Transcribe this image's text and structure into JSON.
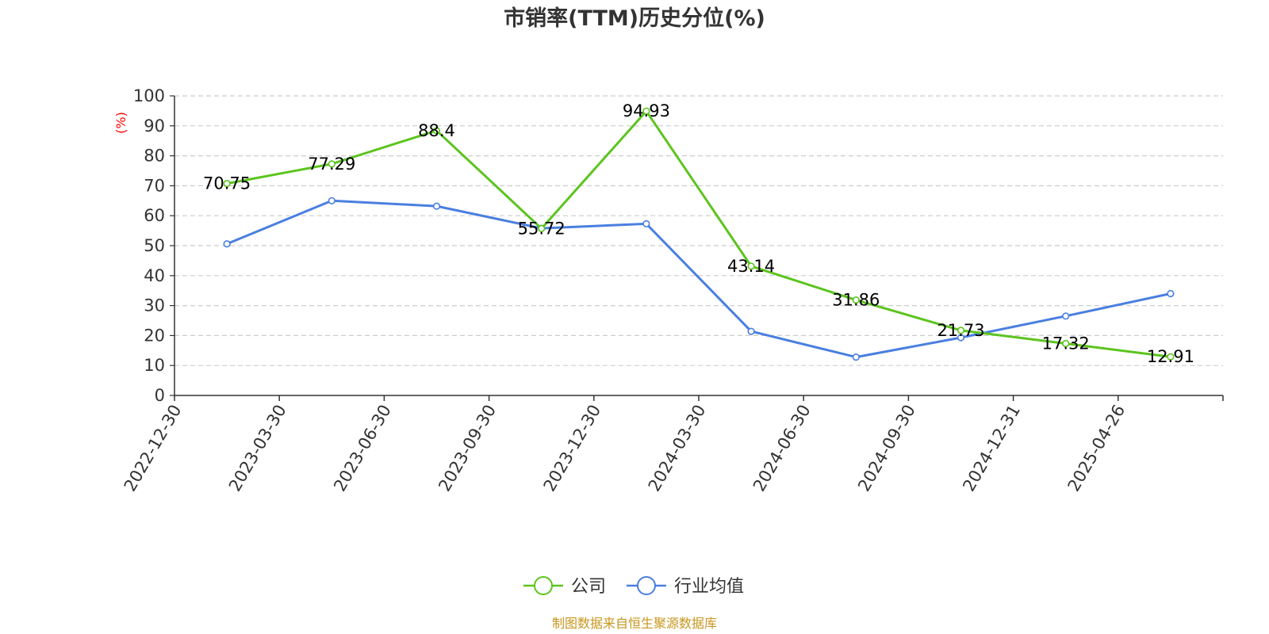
{
  "chart_data": {
    "type": "line",
    "title": "市销率(TTM)历史分位(%)",
    "ylabel": "(%)",
    "xlabel": "",
    "ylim": [
      0,
      100
    ],
    "yticks": [
      0,
      10,
      20,
      30,
      40,
      50,
      60,
      70,
      80,
      90,
      100
    ],
    "grid": true,
    "legend_position": "bottom",
    "categories": [
      "2022-12-30",
      "2023-03-30",
      "2023-06-30",
      "2023-09-30",
      "2023-12-30",
      "2024-03-30",
      "2024-06-30",
      "2024-09-30",
      "2024-12-31",
      "2025-04-26"
    ],
    "series": [
      {
        "name": "公司",
        "color": "#5cc41e",
        "values": [
          70.75,
          77.29,
          88.4,
          55.72,
          94.93,
          43.14,
          31.86,
          21.73,
          17.32,
          12.91
        ],
        "labels": [
          "70.75",
          "77.29",
          "88.4",
          "55.72",
          "94.93",
          "43.14",
          "31.86",
          "21.73",
          "17.32",
          "12.91"
        ]
      },
      {
        "name": "行业均值",
        "color": "#4a7fe0",
        "values": [
          50.6,
          65.0,
          63.2,
          55.8,
          57.3,
          21.4,
          12.8,
          19.3,
          26.5,
          34.0
        ]
      }
    ]
  },
  "ylabel_color": "#ff0000",
  "source": {
    "text": "制图数据来自恒生聚源数据库",
    "color": "#c8961e"
  }
}
